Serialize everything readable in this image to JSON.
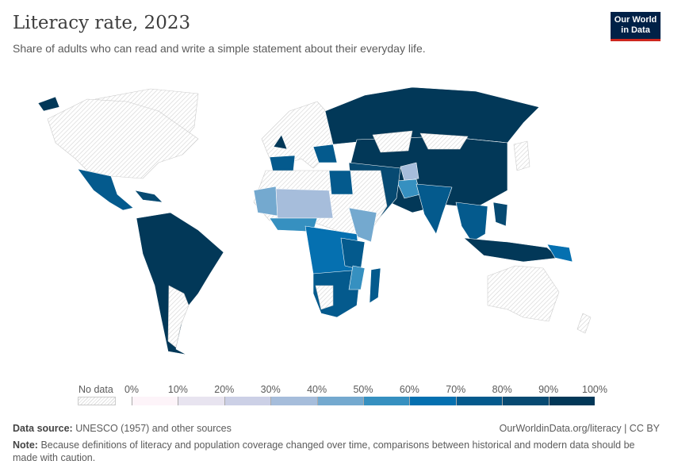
{
  "header": {
    "title": "Literacy rate, 2023",
    "subtitle": "Share of adults who can read and write a simple statement about their everyday life.",
    "logo_text": "Our World in Data",
    "logo_colors": {
      "bg": "#002147",
      "accent": "#ce261e"
    }
  },
  "legend": {
    "no_data_label": "No data",
    "ticks": [
      "0%",
      "10%",
      "20%",
      "30%",
      "40%",
      "50%",
      "60%",
      "70%",
      "80%",
      "90%",
      "100%"
    ],
    "colors": [
      "#fdf4f9",
      "#e8e4f0",
      "#ccd0e6",
      "#a6bddb",
      "#74a9cf",
      "#3690c0",
      "#0570b0",
      "#045a8d",
      "#074a72",
      "#023858"
    ]
  },
  "footer": {
    "source_label": "Data source:",
    "source_text": "UNESCO (1957) and other sources",
    "link": "OurWorldinData.org/literacy | CC BY",
    "note_label": "Note:",
    "note_text": "Because definitions of literacy and population coverage changed over time, comparisons between historical and modern data should be made with caution."
  }
}
